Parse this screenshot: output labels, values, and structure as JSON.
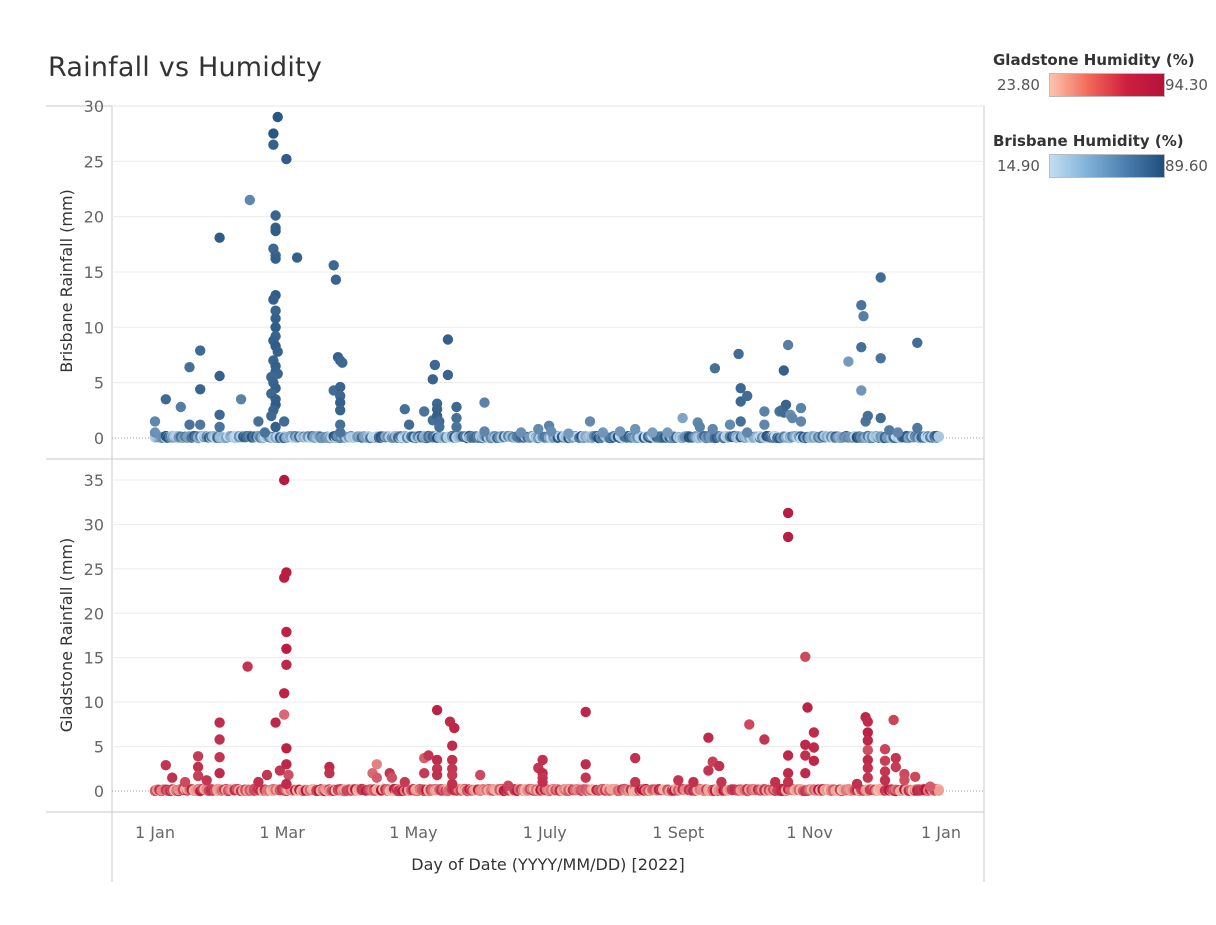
{
  "title": "Rainfall vs Humidity",
  "legends": {
    "gladstone": {
      "title": "Gladstone Humidity (%)",
      "min": "23.80",
      "max": "94.30",
      "color_low": "#fcc4ad",
      "color_high": "#b5123a"
    },
    "brisbane": {
      "title": "Brisbane Humidity (%)",
      "min": "14.90",
      "max": "89.60",
      "color_low": "#c2def3",
      "color_high": "#1f4e7c"
    }
  },
  "chart_data": [
    {
      "type": "scatter",
      "name": "brisbane",
      "ylabel": "Brisbane Rainfall (mm)",
      "ylim": [
        0,
        31
      ],
      "yticks": [
        "0",
        "5",
        "10",
        "15",
        "20",
        "25",
        "30"
      ],
      "color_scale": [
        "#c2def3",
        "#1f4e7c"
      ],
      "humidity_range": [
        14.9,
        89.6
      ],
      "points": [
        [
          "2022-01-01",
          1.5,
          60
        ],
        [
          "2022-01-01",
          0.5,
          55
        ],
        [
          "2022-01-06",
          3.5,
          75
        ],
        [
          "2022-01-13",
          2.8,
          65
        ],
        [
          "2022-01-17",
          6.4,
          72
        ],
        [
          "2022-01-17",
          1.2,
          70
        ],
        [
          "2022-01-22",
          7.9,
          75
        ],
        [
          "2022-01-22",
          4.4,
          78
        ],
        [
          "2022-01-22",
          1.2,
          68
        ],
        [
          "2022-01-31",
          18.1,
          82
        ],
        [
          "2022-01-31",
          5.6,
          80
        ],
        [
          "2022-01-31",
          2.1,
          76
        ],
        [
          "2022-01-31",
          1.0,
          70
        ],
        [
          "2022-02-10",
          3.5,
          62
        ],
        [
          "2022-02-14",
          21.5,
          60
        ],
        [
          "2022-02-18",
          1.5,
          72
        ],
        [
          "2022-02-25",
          27.5,
          85
        ],
        [
          "2022-02-25",
          26.5,
          80
        ],
        [
          "2022-02-27",
          29.0,
          85
        ],
        [
          "2022-03-03",
          25.2,
          82
        ],
        [
          "2022-02-26",
          20.1,
          78
        ],
        [
          "2022-02-26",
          19.0,
          80
        ],
        [
          "2022-02-26",
          18.7,
          82
        ],
        [
          "2022-02-25",
          17.1,
          76
        ],
        [
          "2022-02-26",
          16.5,
          78
        ],
        [
          "2022-02-26",
          16.2,
          80
        ],
        [
          "2022-03-08",
          16.3,
          80
        ],
        [
          "2022-02-26",
          12.9,
          82
        ],
        [
          "2022-02-25",
          12.5,
          80
        ],
        [
          "2022-02-26",
          11.5,
          78
        ],
        [
          "2022-02-26",
          10.8,
          80
        ],
        [
          "2022-02-26",
          10.0,
          82
        ],
        [
          "2022-02-26",
          9.2,
          78
        ],
        [
          "2022-02-25",
          8.8,
          80
        ],
        [
          "2022-02-26",
          8.3,
          82
        ],
        [
          "2022-02-27",
          7.8,
          80
        ],
        [
          "2022-02-25",
          7.0,
          78
        ],
        [
          "2022-02-26",
          6.5,
          80
        ],
        [
          "2022-02-26",
          6.0,
          80
        ],
        [
          "2022-02-27",
          5.8,
          78
        ],
        [
          "2022-02-24",
          5.5,
          76
        ],
        [
          "2022-02-25",
          5.0,
          78
        ],
        [
          "2022-02-26",
          4.5,
          80
        ],
        [
          "2022-02-24",
          4.0,
          76
        ],
        [
          "2022-02-26",
          3.5,
          80
        ],
        [
          "2022-02-26",
          3.0,
          82
        ],
        [
          "2022-02-25",
          2.5,
          78
        ],
        [
          "2022-02-24",
          2.0,
          76
        ],
        [
          "2022-03-02",
          1.5,
          74
        ],
        [
          "2022-02-26",
          1.0,
          80
        ],
        [
          "2022-02-21",
          0.5,
          70
        ],
        [
          "2022-03-25",
          15.6,
          76
        ],
        [
          "2022-03-26",
          14.3,
          78
        ],
        [
          "2022-03-27",
          7.3,
          80
        ],
        [
          "2022-03-28",
          7.0,
          78
        ],
        [
          "2022-03-29",
          6.8,
          76
        ],
        [
          "2022-03-25",
          4.3,
          74
        ],
        [
          "2022-03-28",
          4.6,
          78
        ],
        [
          "2022-03-28",
          3.8,
          76
        ],
        [
          "2022-03-28",
          3.2,
          80
        ],
        [
          "2022-03-28",
          2.5,
          78
        ],
        [
          "2022-03-28",
          1.2,
          72
        ],
        [
          "2022-03-28",
          0.5,
          70
        ],
        [
          "2022-04-27",
          2.6,
          72
        ],
        [
          "2022-04-29",
          1.2,
          74
        ],
        [
          "2022-05-06",
          2.4,
          70
        ],
        [
          "2022-05-10",
          1.6,
          72
        ],
        [
          "2022-05-11",
          6.6,
          76
        ],
        [
          "2022-05-10",
          5.3,
          78
        ],
        [
          "2022-05-17",
          8.9,
          80
        ],
        [
          "2022-05-17",
          5.7,
          78
        ],
        [
          "2022-05-12",
          3.1,
          76
        ],
        [
          "2022-05-12",
          2.6,
          78
        ],
        [
          "2022-05-12",
          2.0,
          80
        ],
        [
          "2022-05-13",
          1.5,
          74
        ],
        [
          "2022-05-13",
          1.0,
          72
        ],
        [
          "2022-05-21",
          2.8,
          76
        ],
        [
          "2022-05-21",
          1.8,
          72
        ],
        [
          "2022-05-21",
          1.0,
          70
        ],
        [
          "2022-06-03",
          3.2,
          62
        ],
        [
          "2022-06-03",
          0.6,
          60
        ],
        [
          "2022-06-20",
          0.5,
          55
        ],
        [
          "2022-06-28",
          0.8,
          58
        ],
        [
          "2022-07-03",
          1.1,
          62
        ],
        [
          "2022-07-04",
          0.6,
          56
        ],
        [
          "2022-07-12",
          0.4,
          50
        ],
        [
          "2022-07-22",
          1.5,
          58
        ],
        [
          "2022-07-28",
          0.5,
          52
        ],
        [
          "2022-08-05",
          0.6,
          52
        ],
        [
          "2022-08-12",
          0.8,
          54
        ],
        [
          "2022-08-20",
          0.5,
          48
        ],
        [
          "2022-08-27",
          0.5,
          50
        ],
        [
          "2022-09-03",
          1.8,
          45
        ],
        [
          "2022-09-10",
          1.4,
          60
        ],
        [
          "2022-09-11",
          1.0,
          62
        ],
        [
          "2022-09-18",
          6.3,
          72
        ],
        [
          "2022-09-17",
          0.8,
          60
        ],
        [
          "2022-09-25",
          1.2,
          58
        ],
        [
          "2022-09-29",
          7.6,
          74
        ],
        [
          "2022-09-30",
          4.5,
          76
        ],
        [
          "2022-09-30",
          3.3,
          76
        ],
        [
          "2022-10-03",
          3.8,
          74
        ],
        [
          "2022-09-30",
          1.5,
          72
        ],
        [
          "2022-10-03",
          0.5,
          60
        ],
        [
          "2022-10-11",
          2.4,
          62
        ],
        [
          "2022-10-11",
          1.2,
          60
        ],
        [
          "2022-10-18",
          2.4,
          70
        ],
        [
          "2022-10-19",
          2.5,
          72
        ],
        [
          "2022-10-20",
          2.3,
          74
        ],
        [
          "2022-10-21",
          3.0,
          78
        ],
        [
          "2022-10-20",
          6.1,
          80
        ],
        [
          "2022-10-22",
          8.4,
          64
        ],
        [
          "2022-10-23",
          2.1,
          56
        ],
        [
          "2022-10-24",
          1.8,
          60
        ],
        [
          "2022-10-28",
          2.7,
          62
        ],
        [
          "2022-10-28",
          1.5,
          60
        ],
        [
          "2022-11-19",
          6.9,
          50
        ],
        [
          "2022-11-25",
          12.0,
          70
        ],
        [
          "2022-11-26",
          11.0,
          64
        ],
        [
          "2022-11-25",
          8.2,
          72
        ],
        [
          "2022-11-25",
          4.3,
          52
        ],
        [
          "2022-11-27",
          1.5,
          70
        ],
        [
          "2022-11-28",
          2.0,
          72
        ],
        [
          "2022-12-04",
          14.5,
          74
        ],
        [
          "2022-12-04",
          7.2,
          70
        ],
        [
          "2022-12-04",
          1.8,
          74
        ],
        [
          "2022-12-08",
          0.7,
          66
        ],
        [
          "2022-12-12",
          0.5,
          60
        ],
        [
          "2022-12-21",
          8.6,
          74
        ],
        [
          "2022-12-21",
          0.9,
          68
        ]
      ]
    },
    {
      "type": "scatter",
      "name": "gladstone",
      "ylabel": "Gladstone Rainfall (mm)",
      "ylim": [
        0,
        36.5
      ],
      "yticks": [
        "0",
        "5",
        "10",
        "15",
        "20",
        "25",
        "30",
        "35"
      ],
      "color_scale": [
        "#fcc4ad",
        "#b5123a"
      ],
      "humidity_range": [
        23.8,
        94.3
      ],
      "points": [
        [
          "2022-01-06",
          2.9,
          80
        ],
        [
          "2022-01-09",
          1.5,
          82
        ],
        [
          "2022-01-15",
          1.0,
          72
        ],
        [
          "2022-01-21",
          3.9,
          78
        ],
        [
          "2022-01-21",
          2.7,
          82
        ],
        [
          "2022-01-21",
          1.7,
          76
        ],
        [
          "2022-01-25",
          1.2,
          80
        ],
        [
          "2022-01-31",
          7.7,
          84
        ],
        [
          "2022-01-31",
          5.8,
          82
        ],
        [
          "2022-01-31",
          3.8,
          80
        ],
        [
          "2022-01-31",
          2.0,
          84
        ],
        [
          "2022-02-13",
          14.0,
          80
        ],
        [
          "2022-02-18",
          1.0,
          82
        ],
        [
          "2022-02-22",
          1.8,
          80
        ],
        [
          "2022-02-26",
          7.7,
          86
        ],
        [
          "2022-02-28",
          2.3,
          80
        ],
        [
          "2022-03-02",
          35.0,
          92
        ],
        [
          "2022-03-02",
          24.0,
          90
        ],
        [
          "2022-03-03",
          24.6,
          90
        ],
        [
          "2022-03-03",
          17.9,
          88
        ],
        [
          "2022-03-03",
          16.0,
          90
        ],
        [
          "2022-03-03",
          14.2,
          86
        ],
        [
          "2022-03-02",
          11.0,
          88
        ],
        [
          "2022-03-02",
          8.6,
          60
        ],
        [
          "2022-03-03",
          4.8,
          88
        ],
        [
          "2022-03-03",
          3.0,
          86
        ],
        [
          "2022-03-04",
          1.8,
          70
        ],
        [
          "2022-03-03",
          0.8,
          84
        ],
        [
          "2022-03-23",
          2.7,
          84
        ],
        [
          "2022-03-23",
          2.0,
          82
        ],
        [
          "2022-04-12",
          2.0,
          60
        ],
        [
          "2022-04-14",
          3.0,
          50
        ],
        [
          "2022-04-14",
          1.5,
          65
        ],
        [
          "2022-04-20",
          2.0,
          80
        ],
        [
          "2022-04-21",
          1.5,
          70
        ],
        [
          "2022-04-27",
          1.0,
          78
        ],
        [
          "2022-05-06",
          3.7,
          64
        ],
        [
          "2022-05-08",
          4.0,
          80
        ],
        [
          "2022-05-06",
          2.0,
          78
        ],
        [
          "2022-05-12",
          9.1,
          88
        ],
        [
          "2022-05-12",
          3.5,
          84
        ],
        [
          "2022-05-12",
          2.5,
          80
        ],
        [
          "2022-05-12",
          1.8,
          82
        ],
        [
          "2022-05-18",
          7.8,
          84
        ],
        [
          "2022-05-20",
          7.1,
          86
        ],
        [
          "2022-05-19",
          5.1,
          84
        ],
        [
          "2022-05-19",
          3.5,
          82
        ],
        [
          "2022-05-19",
          2.5,
          80
        ],
        [
          "2022-05-19",
          1.8,
          78
        ],
        [
          "2022-05-19",
          0.8,
          82
        ],
        [
          "2022-06-01",
          1.8,
          72
        ],
        [
          "2022-06-14",
          0.6,
          74
        ],
        [
          "2022-06-28",
          2.6,
          80
        ],
        [
          "2022-06-30",
          3.5,
          82
        ],
        [
          "2022-06-30",
          2.0,
          84
        ],
        [
          "2022-06-30",
          1.5,
          80
        ],
        [
          "2022-06-30",
          1.0,
          82
        ],
        [
          "2022-07-20",
          8.9,
          86
        ],
        [
          "2022-07-20",
          3.0,
          84
        ],
        [
          "2022-07-20",
          1.5,
          80
        ],
        [
          "2022-08-12",
          3.7,
          82
        ],
        [
          "2022-08-12",
          1.0,
          80
        ],
        [
          "2022-09-01",
          1.2,
          80
        ],
        [
          "2022-09-08",
          1.0,
          82
        ],
        [
          "2022-09-15",
          6.0,
          84
        ],
        [
          "2022-09-15",
          2.3,
          80
        ],
        [
          "2022-09-17",
          3.3,
          76
        ],
        [
          "2022-09-20",
          2.8,
          82
        ],
        [
          "2022-09-21",
          1.0,
          80
        ],
        [
          "2022-10-04",
          7.5,
          72
        ],
        [
          "2022-10-11",
          5.8,
          80
        ],
        [
          "2022-10-16",
          1.0,
          82
        ],
        [
          "2022-10-22",
          31.3,
          90
        ],
        [
          "2022-10-22",
          28.6,
          90
        ],
        [
          "2022-10-22",
          4.0,
          86
        ],
        [
          "2022-10-22",
          2.0,
          84
        ],
        [
          "2022-10-22",
          1.0,
          82
        ],
        [
          "2022-10-30",
          15.1,
          72
        ],
        [
          "2022-10-31",
          9.4,
          88
        ],
        [
          "2022-11-03",
          6.6,
          84
        ],
        [
          "2022-10-30",
          5.2,
          86
        ],
        [
          "2022-11-03",
          4.9,
          84
        ],
        [
          "2022-10-30",
          4.0,
          82
        ],
        [
          "2022-11-03",
          3.4,
          86
        ],
        [
          "2022-10-30",
          2.0,
          84
        ],
        [
          "2022-11-23",
          0.8,
          82
        ],
        [
          "2022-11-27",
          8.3,
          86
        ],
        [
          "2022-11-28",
          7.8,
          84
        ],
        [
          "2022-11-28",
          6.6,
          88
        ],
        [
          "2022-11-28",
          5.7,
          86
        ],
        [
          "2022-11-28",
          4.6,
          70
        ],
        [
          "2022-11-28",
          3.5,
          84
        ],
        [
          "2022-11-28",
          2.6,
          82
        ],
        [
          "2022-11-28",
          1.5,
          80
        ],
        [
          "2022-12-06",
          4.7,
          74
        ],
        [
          "2022-12-06",
          3.4,
          76
        ],
        [
          "2022-12-06",
          2.2,
          80
        ],
        [
          "2022-12-06",
          1.2,
          82
        ],
        [
          "2022-12-10",
          8.0,
          74
        ],
        [
          "2022-12-11",
          3.7,
          80
        ],
        [
          "2022-12-11",
          2.7,
          78
        ],
        [
          "2022-12-15",
          1.9,
          72
        ],
        [
          "2022-12-15",
          1.2,
          70
        ],
        [
          "2022-12-20",
          1.6,
          72
        ],
        [
          "2022-12-27",
          0.5,
          64
        ]
      ]
    }
  ],
  "xaxis": {
    "label": "Day of Date (YYYY/MM/DD) [2022]",
    "ticks": [
      {
        "label": "1 Jan",
        "date": "2022-01-01"
      },
      {
        "label": "1 Mar",
        "date": "2022-03-01"
      },
      {
        "label": "1 May",
        "date": "2022-05-01"
      },
      {
        "label": "1 July",
        "date": "2022-07-01"
      },
      {
        "label": "1 Sept",
        "date": "2022-09-01"
      },
      {
        "label": "1 Nov",
        "date": "2022-11-01"
      },
      {
        "label": "1 Jan",
        "date": "2023-01-01"
      }
    ],
    "range": [
      "2022-01-01",
      "2023-01-01"
    ]
  }
}
